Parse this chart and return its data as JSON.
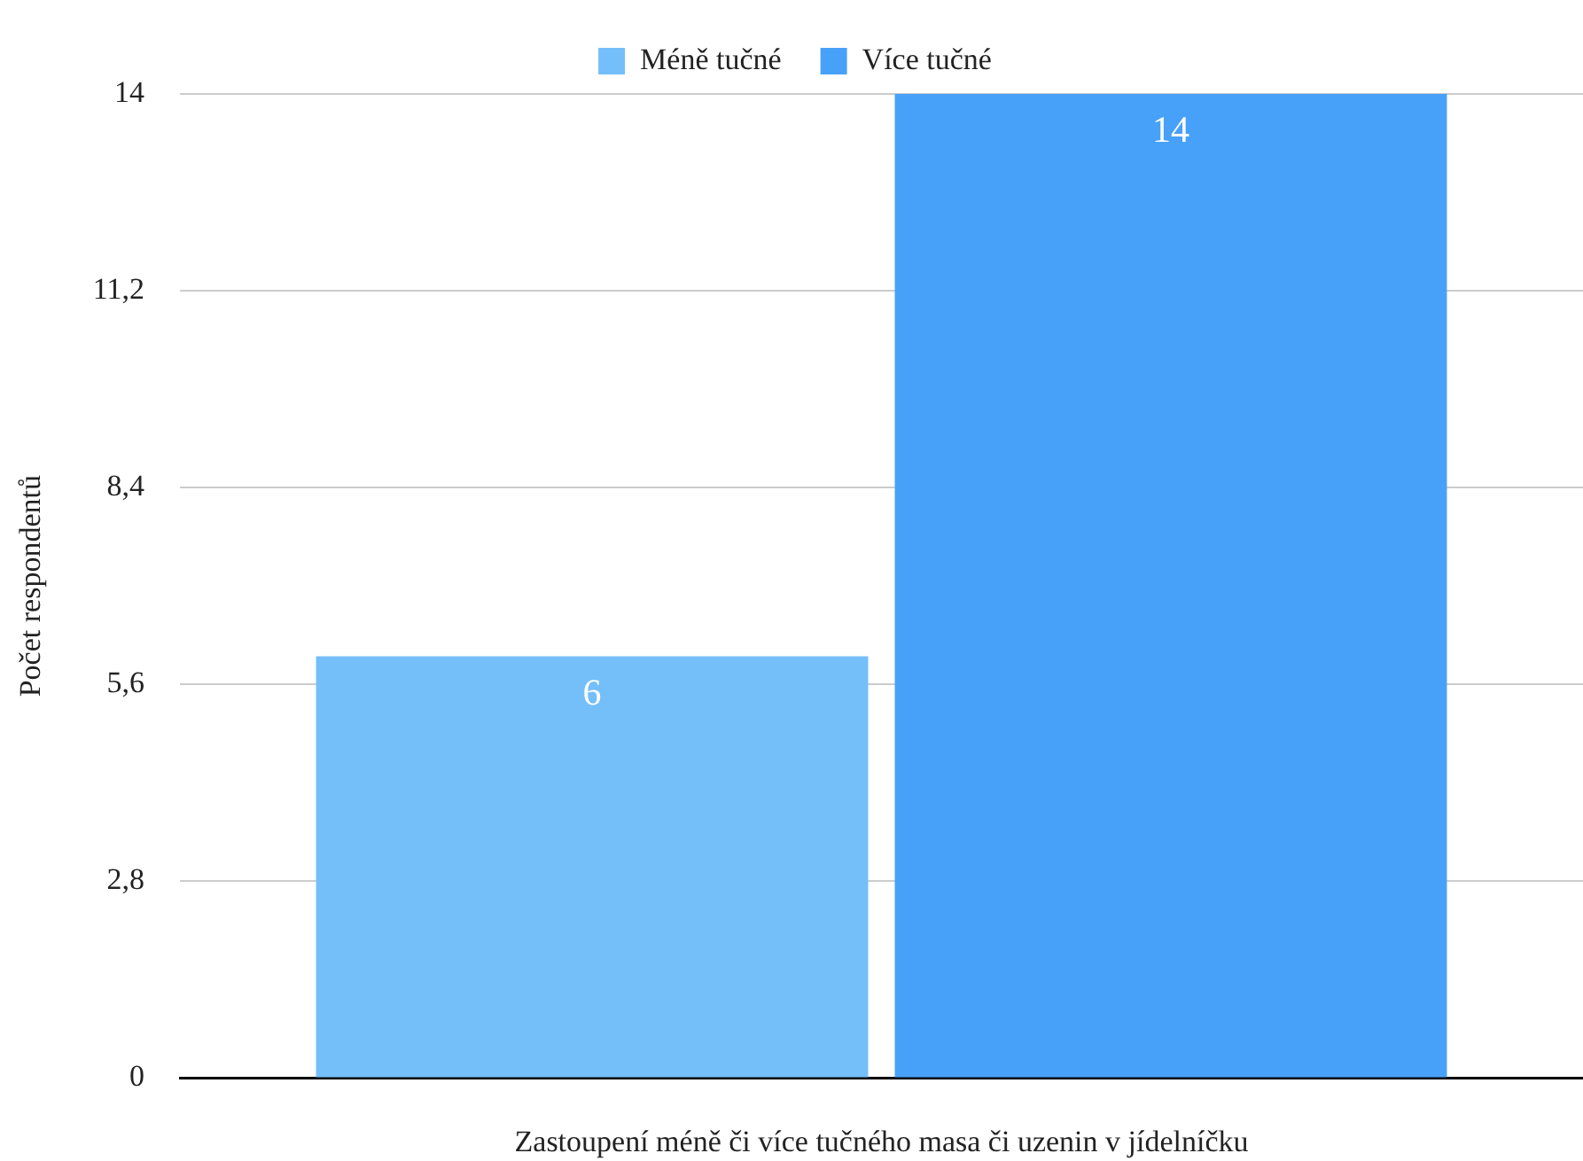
{
  "chart_data": {
    "type": "bar",
    "xlabel": "Zastoupení méně či více tučného masa či uzenin v jídelníčku",
    "ylabel": "Počet respondentů",
    "categories": [
      null
    ],
    "series": [
      {
        "name": "Méně tučné",
        "color": "#74bff9",
        "values": [
          6
        ]
      },
      {
        "name": "Více tučné",
        "color": "#48a1f8",
        "values": [
          14
        ]
      }
    ],
    "ylim": [
      0,
      14
    ],
    "yticks": [
      0,
      {
        "value": 2.8,
        "label": "2,8"
      },
      {
        "value": 5.6,
        "label": "5,6"
      },
      {
        "value": 8.4,
        "label": "8,4"
      },
      {
        "value": 11.2,
        "label": "11,2"
      },
      14
    ],
    "grid": "y",
    "legend": "top",
    "data_labels": true
  }
}
